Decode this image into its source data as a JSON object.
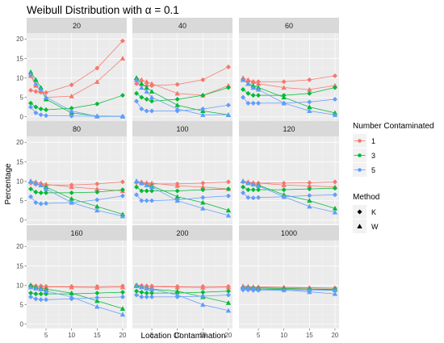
{
  "chart_data": {
    "type": "line",
    "title": "Weibull Distribution with α = 0.1",
    "xlabel": "Location Contamination",
    "ylabel": "Percentage",
    "x": [
      2,
      3,
      4,
      5,
      10,
      15,
      20
    ],
    "xticks": [
      5,
      10,
      15,
      20
    ],
    "yticks": [
      0,
      5,
      10,
      15,
      20
    ],
    "xlim": [
      1.2,
      20.8
    ],
    "ylim": [
      -1.1,
      21.5
    ],
    "grid": true,
    "colors": {
      "1": "#F8766D",
      "3": "#00BA38",
      "5": "#619CFF"
    },
    "legend": {
      "position": "right",
      "color_title": "Number Contaminated",
      "color_items": [
        "1",
        "3",
        "5"
      ],
      "shape_title": "Method",
      "shape_items": [
        {
          "label": "K",
          "shape": "diamond"
        },
        {
          "label": "W",
          "shape": "triangle"
        }
      ]
    },
    "panels": [
      {
        "label": "20",
        "series": [
          {
            "n": "1",
            "method": "K",
            "values": [
              6.8,
              6.5,
              6.3,
              6.2,
              8.2,
              12.5,
              19.5
            ]
          },
          {
            "n": "1",
            "method": "W",
            "values": [
              10.5,
              8.0,
              6.5,
              5.0,
              5.3,
              9.0,
              15.0
            ]
          },
          {
            "n": "3",
            "method": "K",
            "values": [
              3.5,
              2.5,
              2.0,
              1.8,
              2.2,
              3.3,
              5.5
            ]
          },
          {
            "n": "3",
            "method": "W",
            "values": [
              11.5,
              9.5,
              7.5,
              4.5,
              1.0,
              0.2,
              0.1
            ]
          },
          {
            "n": "5",
            "method": "K",
            "values": [
              2.5,
              1.0,
              0.5,
              0.3,
              0.2,
              0.1,
              0.1
            ]
          },
          {
            "n": "5",
            "method": "W",
            "values": [
              11.0,
              8.5,
              7.0,
              5.0,
              1.5,
              0.1,
              0.1
            ]
          }
        ]
      },
      {
        "label": "40",
        "series": [
          {
            "n": "1",
            "method": "K",
            "values": [
              8.5,
              8.2,
              8.0,
              8.0,
              8.3,
              9.5,
              12.8
            ]
          },
          {
            "n": "1",
            "method": "W",
            "values": [
              10.0,
              9.5,
              9.0,
              8.5,
              6.0,
              5.5,
              8.0
            ]
          },
          {
            "n": "3",
            "method": "K",
            "values": [
              6.0,
              5.0,
              4.5,
              4.0,
              4.5,
              5.5,
              7.5
            ]
          },
          {
            "n": "3",
            "method": "W",
            "values": [
              10.0,
              8.5,
              7.5,
              6.5,
              3.0,
              1.5,
              0.5
            ]
          },
          {
            "n": "5",
            "method": "K",
            "values": [
              4.0,
              2.0,
              1.5,
              1.5,
              1.5,
              2.0,
              3.0
            ]
          },
          {
            "n": "5",
            "method": "W",
            "values": [
              9.5,
              7.5,
              6.5,
              5.0,
              2.0,
              0.5,
              0.5
            ]
          }
        ]
      },
      {
        "label": "60",
        "series": [
          {
            "n": "1",
            "method": "K",
            "values": [
              9.5,
              9.0,
              9.0,
              9.0,
              9.0,
              9.5,
              10.5
            ]
          },
          {
            "n": "1",
            "method": "W",
            "values": [
              10.0,
              9.5,
              9.0,
              8.5,
              7.5,
              7.0,
              8.0
            ]
          },
          {
            "n": "3",
            "method": "K",
            "values": [
              7.0,
              6.0,
              5.5,
              5.5,
              5.5,
              6.0,
              7.5
            ]
          },
          {
            "n": "3",
            "method": "W",
            "values": [
              9.5,
              8.5,
              8.0,
              7.5,
              5.0,
              2.5,
              1.0
            ]
          },
          {
            "n": "5",
            "method": "K",
            "values": [
              5.0,
              3.5,
              3.5,
              3.5,
              3.5,
              3.8,
              4.5
            ]
          },
          {
            "n": "5",
            "method": "W",
            "values": [
              9.5,
              8.5,
              7.5,
              7.0,
              3.5,
              1.5,
              0.5
            ]
          }
        ]
      },
      {
        "label": "80",
        "series": [
          {
            "n": "1",
            "method": "K",
            "values": [
              9.5,
              9.2,
              9.2,
              9.0,
              9.0,
              9.3,
              9.8
            ]
          },
          {
            "n": "1",
            "method": "W",
            "values": [
              10.0,
              9.8,
              9.5,
              9.2,
              8.5,
              8.0,
              7.5
            ]
          },
          {
            "n": "3",
            "method": "K",
            "values": [
              8.0,
              7.2,
              7.0,
              7.0,
              7.0,
              7.2,
              7.8
            ]
          },
          {
            "n": "3",
            "method": "W",
            "values": [
              10.0,
              9.5,
              9.0,
              8.5,
              5.5,
              3.5,
              1.5
            ]
          },
          {
            "n": "5",
            "method": "K",
            "values": [
              6.0,
              4.5,
              4.2,
              4.3,
              4.5,
              5.2,
              6.2
            ]
          },
          {
            "n": "5",
            "method": "W",
            "values": [
              10.0,
              9.5,
              9.0,
              8.0,
              4.5,
              2.5,
              1.0
            ]
          }
        ]
      },
      {
        "label": "100",
        "series": [
          {
            "n": "1",
            "method": "K",
            "values": [
              9.6,
              9.5,
              9.4,
              9.3,
              9.3,
              9.5,
              9.8
            ]
          },
          {
            "n": "1",
            "method": "W",
            "values": [
              10.0,
              9.8,
              9.6,
              9.5,
              8.8,
              8.5,
              8.0
            ]
          },
          {
            "n": "3",
            "method": "K",
            "values": [
              8.5,
              7.5,
              7.5,
              7.5,
              7.5,
              7.8,
              8.0
            ]
          },
          {
            "n": "3",
            "method": "W",
            "values": [
              10.0,
              9.5,
              9.0,
              8.8,
              6.0,
              4.5,
              2.5
            ]
          },
          {
            "n": "5",
            "method": "K",
            "values": [
              6.5,
              5.0,
              5.0,
              5.0,
              5.2,
              5.8,
              6.2
            ]
          },
          {
            "n": "5",
            "method": "W",
            "values": [
              10.0,
              9.5,
              9.0,
              8.5,
              5.0,
              3.0,
              1.2
            ]
          }
        ]
      },
      {
        "label": "120",
        "series": [
          {
            "n": "1",
            "method": "K",
            "values": [
              9.8,
              9.6,
              9.5,
              9.5,
              9.5,
              9.6,
              9.8
            ]
          },
          {
            "n": "1",
            "method": "W",
            "values": [
              10.0,
              9.8,
              9.6,
              9.5,
              9.0,
              8.8,
              8.5
            ]
          },
          {
            "n": "3",
            "method": "K",
            "values": [
              8.5,
              7.8,
              7.8,
              7.8,
              7.8,
              8.0,
              8.2
            ]
          },
          {
            "n": "3",
            "method": "W",
            "values": [
              10.0,
              9.5,
              9.2,
              9.0,
              6.5,
              5.0,
              3.0
            ]
          },
          {
            "n": "5",
            "method": "K",
            "values": [
              7.0,
              5.8,
              5.7,
              5.8,
              6.0,
              6.3,
              6.5
            ]
          },
          {
            "n": "5",
            "method": "W",
            "values": [
              10.0,
              9.5,
              9.2,
              8.8,
              6.0,
              3.5,
              2.0
            ]
          }
        ]
      },
      {
        "label": "160",
        "series": [
          {
            "n": "1",
            "method": "K",
            "values": [
              10.0,
              9.8,
              9.8,
              9.7,
              9.7,
              9.7,
              9.8
            ]
          },
          {
            "n": "1",
            "method": "W",
            "values": [
              10.0,
              9.8,
              9.7,
              9.6,
              9.5,
              9.4,
              9.5
            ]
          },
          {
            "n": "3",
            "method": "K",
            "values": [
              8.0,
              7.8,
              7.8,
              7.8,
              7.8,
              8.0,
              8.2
            ]
          },
          {
            "n": "3",
            "method": "W",
            "values": [
              10.0,
              9.5,
              9.2,
              9.0,
              8.0,
              6.0,
              4.0
            ]
          },
          {
            "n": "5",
            "method": "K",
            "values": [
              7.0,
              6.5,
              6.3,
              6.3,
              6.5,
              6.8,
              7.0
            ]
          },
          {
            "n": "5",
            "method": "W",
            "values": [
              9.5,
              9.2,
              9.0,
              8.5,
              7.0,
              4.5,
              2.5
            ]
          }
        ]
      },
      {
        "label": "200",
        "series": [
          {
            "n": "1",
            "method": "K",
            "values": [
              10.0,
              9.9,
              9.8,
              9.8,
              9.7,
              9.7,
              9.7
            ]
          },
          {
            "n": "1",
            "method": "W",
            "values": [
              10.0,
              9.9,
              9.8,
              9.7,
              9.5,
              9.4,
              9.5
            ]
          },
          {
            "n": "3",
            "method": "K",
            "values": [
              8.5,
              8.2,
              8.0,
              8.0,
              8.0,
              8.2,
              8.5
            ]
          },
          {
            "n": "3",
            "method": "W",
            "values": [
              10.0,
              9.6,
              9.3,
              9.0,
              8.5,
              7.0,
              5.5
            ]
          },
          {
            "n": "5",
            "method": "K",
            "values": [
              7.5,
              7.0,
              7.0,
              7.0,
              7.0,
              7.2,
              7.5
            ]
          },
          {
            "n": "5",
            "method": "W",
            "values": [
              9.8,
              9.5,
              9.2,
              9.0,
              7.5,
              5.0,
              3.5
            ]
          }
        ]
      },
      {
        "label": "1000",
        "series": [
          {
            "n": "1",
            "method": "K",
            "values": [
              9.5,
              9.4,
              9.4,
              9.4,
              9.3,
              9.3,
              9.3
            ]
          },
          {
            "n": "1",
            "method": "W",
            "values": [
              9.8,
              9.7,
              9.6,
              9.6,
              9.5,
              9.4,
              9.3
            ]
          },
          {
            "n": "3",
            "method": "K",
            "values": [
              9.2,
              9.0,
              9.0,
              9.0,
              9.0,
              9.0,
              9.0
            ]
          },
          {
            "n": "3",
            "method": "W",
            "values": [
              9.6,
              9.5,
              9.4,
              9.3,
              9.2,
              9.0,
              8.8
            ]
          },
          {
            "n": "5",
            "method": "K",
            "values": [
              8.8,
              8.8,
              8.7,
              8.7,
              8.7,
              8.7,
              8.7
            ]
          },
          {
            "n": "5",
            "method": "W",
            "values": [
              9.5,
              9.3,
              9.2,
              9.0,
              8.8,
              8.3,
              7.8
            ]
          }
        ]
      }
    ]
  }
}
